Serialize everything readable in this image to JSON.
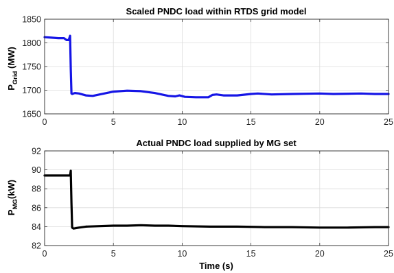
{
  "chart_data": [
    {
      "type": "line",
      "title": "Scaled PNDC load within RTDS grid model",
      "ylabel_main": "P",
      "ylabel_sub": "Grid",
      "ylabel_unit": " (MW)",
      "xlabel": "",
      "xlim": [
        0,
        25
      ],
      "ylim": [
        1650,
        1850
      ],
      "xticks": [
        "0",
        "5",
        "10",
        "15",
        "20",
        "25"
      ],
      "yticks": [
        "1650",
        "1700",
        "1750",
        "1800",
        "1850"
      ],
      "grid": true,
      "color": "#1515e6",
      "series": [
        {
          "x": [
            0,
            0.5,
            1.0,
            1.4,
            1.6,
            1.75,
            1.85,
            1.9,
            1.95,
            2.0,
            2.2,
            2.5,
            3.0,
            3.5,
            4.0,
            5.0,
            6.0,
            7.0,
            8.0,
            9.0,
            9.5,
            9.8,
            10.2,
            11.0,
            11.9,
            12.2,
            12.5,
            13.0,
            14.0,
            15.0,
            15.5,
            16.5,
            18.0,
            20.0,
            21.0,
            23.0,
            24.0,
            25.0
          ],
          "y": [
            1812,
            1811,
            1810,
            1810,
            1806,
            1806,
            1815,
            1745,
            1693,
            1692,
            1694,
            1693,
            1689,
            1688,
            1691,
            1697,
            1699,
            1698,
            1694,
            1688,
            1687,
            1689,
            1686,
            1685,
            1685,
            1690,
            1691,
            1689,
            1689,
            1692,
            1693,
            1691,
            1692,
            1693,
            1692,
            1693,
            1692,
            1692
          ]
        }
      ]
    },
    {
      "type": "line",
      "title": "Actual PNDC load supplied by MG set",
      "ylabel_main": "P",
      "ylabel_sub": "MG",
      "ylabel_unit": "(kW)",
      "xlabel": "Time (s)",
      "xlim": [
        0,
        25
      ],
      "ylim": [
        82,
        92
      ],
      "xticks": [
        "0",
        "5",
        "10",
        "15",
        "20",
        "25"
      ],
      "yticks": [
        "82",
        "84",
        "86",
        "88",
        "90",
        "92"
      ],
      "grid": true,
      "color": "#000000",
      "series": [
        {
          "x": [
            0,
            0.5,
            1.0,
            1.5,
            1.85,
            1.9,
            1.95,
            2.0,
            2.1,
            2.5,
            3.0,
            4.0,
            5.0,
            6.0,
            7.0,
            8.0,
            9.0,
            10.0,
            12.0,
            14.0,
            16.0,
            18.0,
            20.0,
            22.0,
            24.0,
            25.0
          ],
          "y": [
            89.4,
            89.4,
            89.4,
            89.4,
            89.4,
            89.9,
            86.5,
            83.9,
            83.8,
            83.9,
            84.0,
            84.05,
            84.1,
            84.1,
            84.15,
            84.1,
            84.1,
            84.05,
            84.0,
            84.0,
            83.95,
            83.95,
            83.9,
            83.9,
            83.95,
            83.95
          ]
        }
      ]
    }
  ]
}
